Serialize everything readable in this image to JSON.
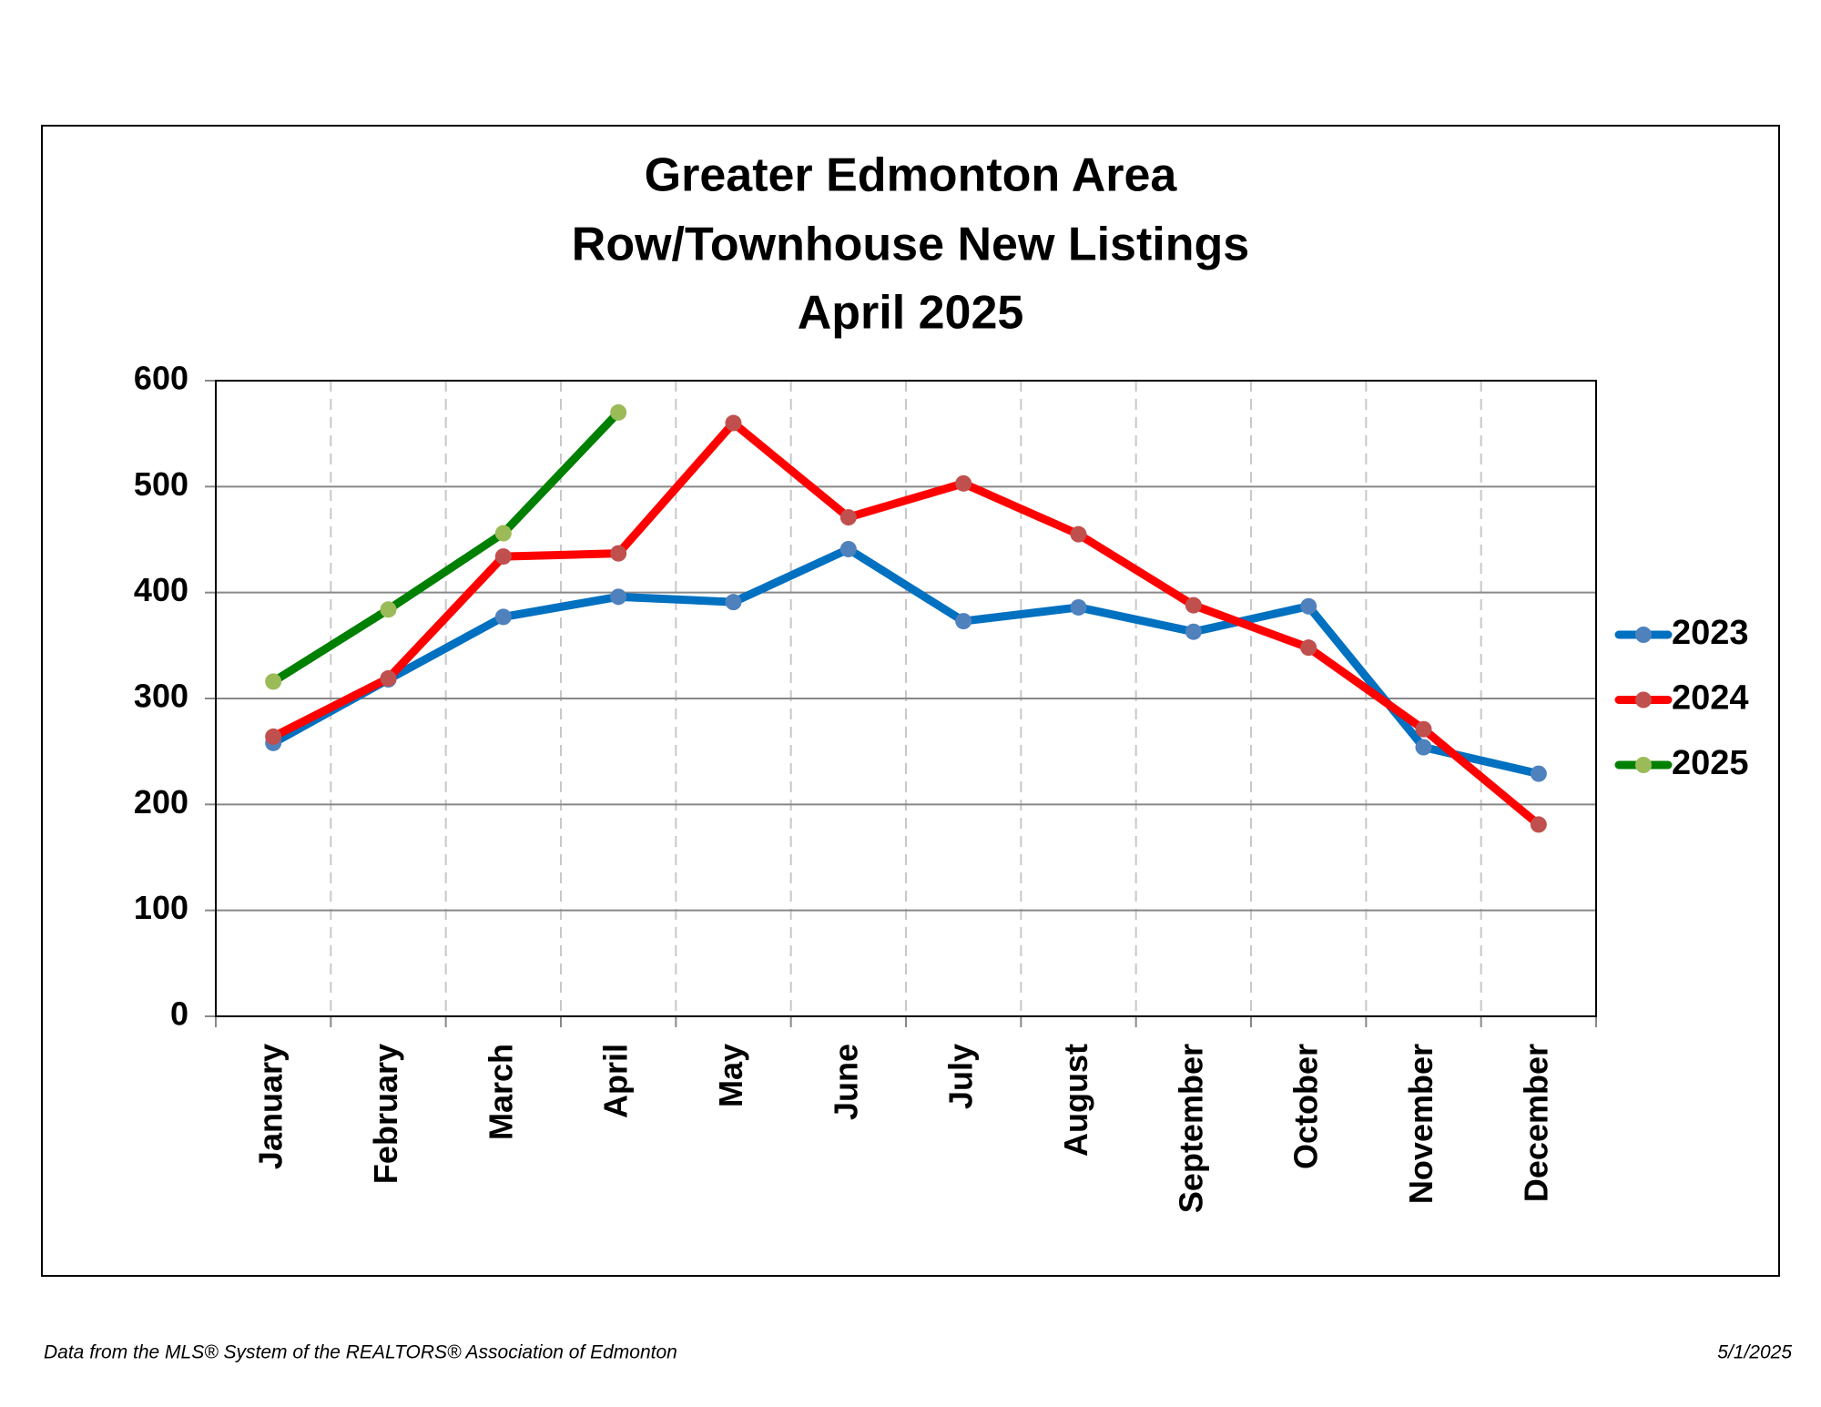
{
  "chart_data": {
    "type": "line",
    "title": [
      "Greater Edmonton Area",
      "Row/Townhouse New Listings",
      "April 2025"
    ],
    "categories": [
      "January",
      "February",
      "March",
      "April",
      "May",
      "June",
      "July",
      "August",
      "September",
      "October",
      "November",
      "December"
    ],
    "series": [
      {
        "name": "2023",
        "color": "#0070c0",
        "marker_color": "#4f81bd",
        "values": [
          258,
          318,
          377,
          396,
          391,
          441,
          373,
          386,
          363,
          387,
          254,
          229
        ]
      },
      {
        "name": "2024",
        "color": "#ff0000",
        "marker_color": "#c0504d",
        "values": [
          264,
          319,
          434,
          437,
          560,
          471,
          503,
          455,
          388,
          348,
          271,
          181
        ]
      },
      {
        "name": "2025",
        "color": "#008000",
        "marker_color": "#9bbb59",
        "values": [
          316,
          384,
          456,
          570,
          null,
          null,
          null,
          null,
          null,
          null,
          null,
          null
        ]
      }
    ],
    "ylim": [
      0,
      600
    ],
    "yticks": [
      0,
      100,
      200,
      300,
      400,
      500,
      600
    ],
    "grid": true,
    "legend": "right",
    "source": "Data from the MLS® System of the REALTORS® Association of Edmonton",
    "date": "5/1/2025"
  }
}
